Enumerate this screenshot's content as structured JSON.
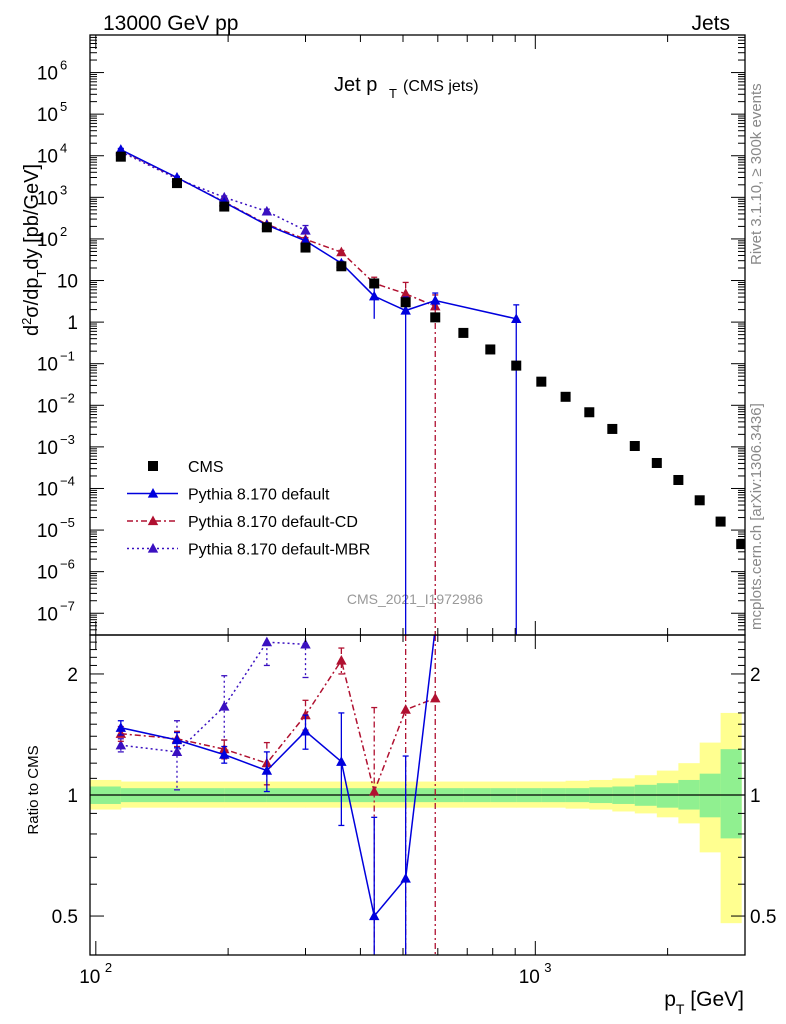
{
  "header": {
    "energy_label": "13000 GeV pp",
    "category_label": "Jets",
    "plot_title_main": "Jet p",
    "plot_title_sub": "T",
    "plot_title_note": "(CMS jets)",
    "analysis_id": "CMS_2021_I1972986",
    "side_rivet": "Rivet 3.1.10, ≥ 300k events",
    "side_url": "mcplots.cern.ch [arXiv:1306.3436]"
  },
  "colors": {
    "cms": "#000000",
    "default": "#0000dd",
    "default_cd": "#b01030",
    "default_mbr": "#3a10c0",
    "band_green": "#90f090",
    "band_yellow": "#ffff90"
  },
  "chart_data": [
    {
      "type": "scatter",
      "title": "Jet pT (CMS jets)",
      "xlabel": "p_T [GeV]",
      "ylabel": "d²σ/dp_T dy [pb/GeV]",
      "xscale": "log",
      "yscale": "log",
      "xlim": [
        97,
        3000
      ],
      "ylim": [
        3e-08,
        8000000.0
      ],
      "grid": false,
      "legend_position": "bottom-left",
      "x_tick_labels": [
        "10²",
        "10³"
      ],
      "y_tick_labels": [
        "10⁻⁷",
        "10⁻⁶",
        "10⁻⁵",
        "10⁻⁴",
        "10⁻³",
        "10⁻²",
        "10⁻¹",
        "1",
        "10",
        "10²",
        "10³",
        "10⁴",
        "10⁵",
        "10⁶"
      ],
      "series": [
        {
          "name": "CMS",
          "style": "markers",
          "x": [
            114,
            153,
            196,
            245,
            300,
            362,
            430,
            507,
            592,
            686,
            790,
            905,
            1032,
            1172,
            1327,
            1497,
            1684,
            1890,
            2116,
            2366,
            2640,
            2941
          ],
          "y": [
            9500,
            2200,
            600,
            190,
            62,
            22,
            8.5,
            3.0,
            1.3,
            0.55,
            0.22,
            0.09,
            0.037,
            0.016,
            0.0068,
            0.0027,
            0.00105,
            0.00041,
            0.00016,
            5.2e-05,
            1.6e-05,
            4.6e-06
          ]
        },
        {
          "name": "Pythia 8.170 default",
          "style": "solid",
          "x": [
            114,
            153,
            196,
            245,
            300,
            362,
            430,
            507,
            592,
            905
          ],
          "y": [
            14000,
            3000,
            760,
            215,
            90,
            26,
            4.2,
            1.9,
            3.3,
            1.2
          ],
          "yerr_low": [
            13000,
            2800,
            700,
            198,
            82,
            23,
            1.2,
            1e-10,
            2.0,
            1e-10
          ],
          "yerr_high": [
            15000,
            3200,
            820,
            232,
            98,
            29,
            8.0,
            4.0,
            5.0,
            2.6
          ]
        },
        {
          "name": "Pythia 8.170 default-CD",
          "style": "dashdot",
          "x": [
            114,
            153,
            196,
            245,
            300,
            362,
            430,
            507,
            592
          ],
          "y": [
            13500,
            2950,
            780,
            225,
            98,
            48,
            8.6,
            4.8,
            2.4
          ],
          "yerr_low": [
            12500,
            2750,
            720,
            205,
            88,
            43,
            6.0,
            2.0,
            1e-10
          ],
          "yerr_high": [
            14500,
            3150,
            840,
            245,
            108,
            53,
            12.0,
            9.0,
            4.5
          ]
        },
        {
          "name": "Pythia 8.170 default-MBR",
          "style": "dotted",
          "x": [
            114,
            153,
            196,
            245,
            300
          ],
          "y": [
            12500,
            2800,
            1000,
            460,
            160
          ],
          "yerr_low": [
            11500,
            2600,
            920,
            400,
            120
          ],
          "yerr_high": [
            13500,
            3000,
            1080,
            520,
            210
          ]
        }
      ]
    },
    {
      "type": "scatter",
      "xlabel": "p_T [GeV]",
      "ylabel": "Ratio to CMS",
      "xscale": "log",
      "yscale": "log",
      "xlim": [
        97,
        3000
      ],
      "ylim": [
        0.4,
        2.5
      ],
      "y_tick_labels": [
        "0.5",
        "1",
        "2"
      ],
      "bands": {
        "edges": [
          97,
          114,
          153,
          196,
          245,
          300,
          362,
          430,
          507,
          592,
          686,
          790,
          905,
          1032,
          1172,
          1327,
          1497,
          1684,
          1890,
          2116,
          2366,
          2640,
          2941
        ],
        "green_low": [
          0.95,
          0.96,
          0.96,
          0.96,
          0.96,
          0.96,
          0.96,
          0.96,
          0.96,
          0.96,
          0.96,
          0.96,
          0.96,
          0.96,
          0.96,
          0.955,
          0.95,
          0.94,
          0.93,
          0.92,
          0.88,
          0.78
        ],
        "green_high": [
          1.05,
          1.04,
          1.04,
          1.04,
          1.04,
          1.04,
          1.04,
          1.04,
          1.04,
          1.04,
          1.04,
          1.04,
          1.04,
          1.04,
          1.04,
          1.045,
          1.05,
          1.06,
          1.07,
          1.09,
          1.13,
          1.3
        ],
        "yellow_low": [
          0.92,
          0.93,
          0.93,
          0.93,
          0.93,
          0.93,
          0.93,
          0.93,
          0.93,
          0.93,
          0.93,
          0.93,
          0.93,
          0.93,
          0.925,
          0.92,
          0.91,
          0.9,
          0.88,
          0.85,
          0.72,
          0.48
        ],
        "yellow_high": [
          1.09,
          1.08,
          1.08,
          1.08,
          1.08,
          1.08,
          1.08,
          1.08,
          1.08,
          1.08,
          1.08,
          1.08,
          1.08,
          1.08,
          1.085,
          1.09,
          1.1,
          1.12,
          1.15,
          1.2,
          1.35,
          1.6
        ]
      },
      "series": [
        {
          "name": "Pythia 8.170 default",
          "style": "solid",
          "x": [
            114,
            153,
            196,
            245,
            300,
            362,
            430,
            507,
            592
          ],
          "y": [
            1.47,
            1.37,
            1.26,
            1.15,
            1.44,
            1.21,
            0.5,
            0.62,
            2.6
          ],
          "yerr_low": [
            1.41,
            1.31,
            1.2,
            1.02,
            1.3,
            0.84,
            0.3,
            0.3,
            2.6
          ],
          "yerr_high": [
            1.53,
            1.43,
            1.32,
            1.28,
            1.58,
            1.6,
            0.88,
            1.25,
            2.6
          ]
        },
        {
          "name": "Pythia 8.170 default-CD",
          "style": "dashdot",
          "x": [
            114,
            153,
            196,
            245,
            300,
            362,
            430,
            507,
            592
          ],
          "y": [
            1.42,
            1.38,
            1.3,
            1.2,
            1.58,
            2.16,
            1.02,
            1.63,
            1.74
          ],
          "yerr_low": [
            1.36,
            1.32,
            1.23,
            1.06,
            1.45,
            2.0,
            0.3,
            0.3,
            0.3
          ],
          "yerr_high": [
            1.48,
            1.44,
            1.37,
            1.35,
            1.72,
            2.32,
            1.65,
            2.5,
            2.5
          ]
        },
        {
          "name": "Pythia 8.170 default-MBR",
          "style": "dotted",
          "x": [
            114,
            153,
            196,
            245,
            300
          ],
          "y": [
            1.33,
            1.28,
            1.66,
            2.4,
            2.37
          ],
          "yerr_low": [
            1.28,
            1.03,
            1.37,
            2.1,
            1.96
          ],
          "yerr_high": [
            1.38,
            1.53,
            1.98,
            2.6,
            2.6
          ]
        }
      ]
    }
  ]
}
